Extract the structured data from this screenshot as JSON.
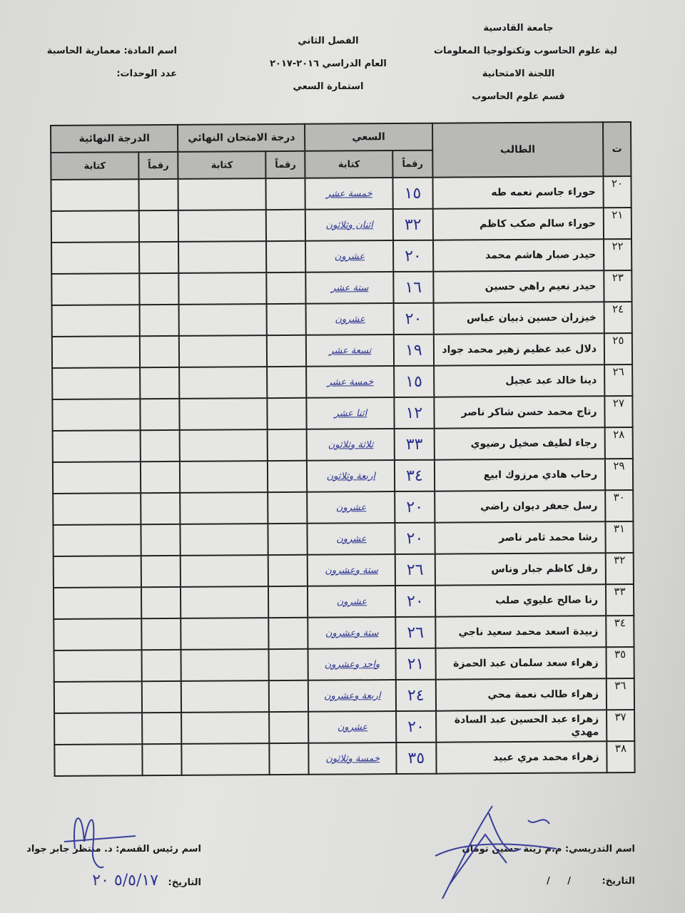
{
  "header": {
    "right": [
      "جامعة القادسية",
      "لية علوم الحاسوب وتكنولوجيا المعلومات",
      "اللجنة الامتحانية",
      "قسم علوم الحاسوب"
    ],
    "center": [
      "الفصل الثاني",
      "العام الدراسي ٢٠١٦-٢٠١٧",
      "استمارة السعي"
    ],
    "left": [
      "اسم المادة: معمارية الحاسبة",
      "عدد الوحدات:"
    ]
  },
  "table": {
    "headers": {
      "index": "ت",
      "student": "الطالب",
      "coursework": "السعي",
      "final_exam": "درجة الامتحان النهائي",
      "final_grade": "الدرجة النهائية",
      "digits": "رقماً",
      "writing": "كتابة"
    },
    "rows": [
      {
        "n": "٢٠",
        "name": "حوراء جاسم نعمه طه",
        "digits": "١٥",
        "writing": "خمسة عشر"
      },
      {
        "n": "٢١",
        "name": "حوراء سالم صكب كاظم",
        "digits": "٣٢",
        "writing": "اثنان وثلاثون"
      },
      {
        "n": "٢٢",
        "name": "حيدر صبار هاشم محمد",
        "digits": "٢٠",
        "writing": "عشرون"
      },
      {
        "n": "٢٣",
        "name": "حيدر نعيم راهي حسين",
        "digits": "١٦",
        "writing": "ستة عشر"
      },
      {
        "n": "٢٤",
        "name": "خيزران حسين ذبيان عباس",
        "digits": "٢٠",
        "writing": "عشرون"
      },
      {
        "n": "٢٥",
        "name": "دلال عبد عظيم زهير محمد جواد",
        "digits": "١٩",
        "writing": "تسعة عشر"
      },
      {
        "n": "٢٦",
        "name": "دينا خالد عبد عجيل",
        "digits": "١٥",
        "writing": "خمسة عشر"
      },
      {
        "n": "٢٧",
        "name": "رتاج محمد حسن شاكر ناصر",
        "digits": "١٢",
        "writing": "اثنا عشر"
      },
      {
        "n": "٢٨",
        "name": "رجاء لطيف صخيل رضيوي",
        "digits": "٣٣",
        "writing": "ثلاثة وثلاثون"
      },
      {
        "n": "٢٩",
        "name": "رحاب هادي مرزوك ابيع",
        "digits": "٣٤",
        "writing": "اربعة وثلاثون"
      },
      {
        "n": "٣٠",
        "name": "رسل جعفر ديوان راضي",
        "digits": "٢٠",
        "writing": "عشرون"
      },
      {
        "n": "٣١",
        "name": "رشا محمد ثامر ناصر",
        "digits": "٢٠",
        "writing": "عشرون"
      },
      {
        "n": "٣٢",
        "name": "رفل كاظم جبار وناس",
        "digits": "٢٦",
        "writing": "ستة وعشرون"
      },
      {
        "n": "٣٣",
        "name": "رنا صالح عليوي صلب",
        "digits": "٢٠",
        "writing": "عشرون"
      },
      {
        "n": "٣٤",
        "name": "زبيدة اسعد محمد سعيد ناجي",
        "digits": "٢٦",
        "writing": "ستة وعشرون"
      },
      {
        "n": "٣٥",
        "name": "زهراء سعد سلمان عبد الحمزة",
        "digits": "٢١",
        "writing": "واحد وعشرون"
      },
      {
        "n": "٣٦",
        "name": "زهراء طالب نعمة محي",
        "digits": "٢٤",
        "writing": "اربعة وعشرون"
      },
      {
        "n": "٣٧",
        "name": "زهراء عبد الحسين عبد السادة مهدي",
        "digits": "٢٠",
        "writing": "عشرون"
      },
      {
        "n": "٣٨",
        "name": "زهراء محمد مري عبيد",
        "digits": "٣٥",
        "writing": "خمسة وثلاثون"
      }
    ]
  },
  "footer": {
    "instructor": "اسم التدريسي: م.م زينة حسين تومان",
    "instructor_date_label": "التاريخ:",
    "instructor_date_value": "/     /",
    "head": "اسم رئيس القسم: د. منتظر جابر جواد",
    "head_date_label": "التاريخ:",
    "head_date_value": "٥/٥/١٧ ٢٠"
  },
  "colors": {
    "ink": "#2f3690",
    "header_fill": "#b9b9b7",
    "paper": "#e4e4e2"
  }
}
